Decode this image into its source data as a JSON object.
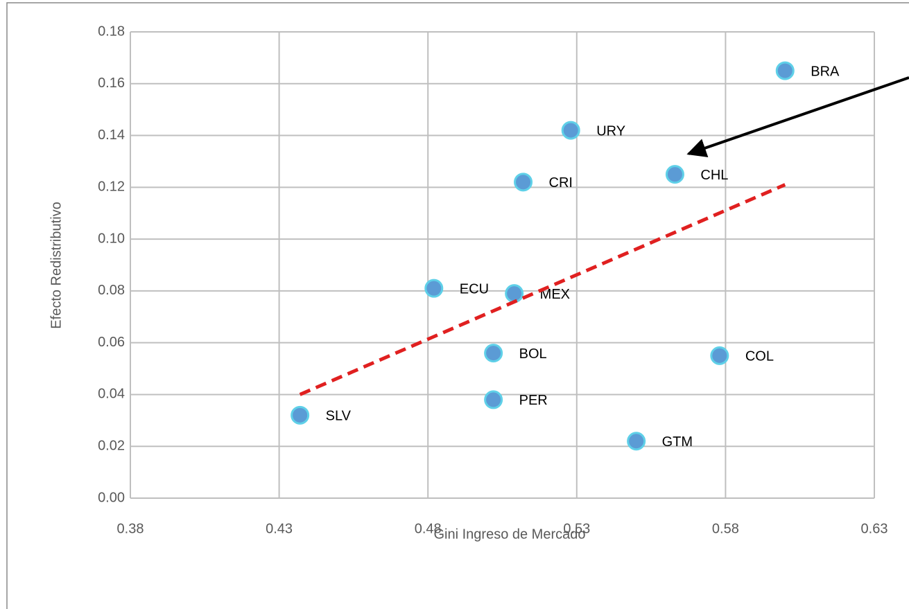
{
  "chart_data": {
    "type": "scatter",
    "xlabel": "Gini Ingreso de Mercado",
    "ylabel": "Efecto Redistributivo",
    "point_labels": [
      "BRA",
      "URY",
      "CHL",
      "CRI",
      "ECU",
      "MEX",
      "BOL",
      "COL",
      "PER",
      "SLV",
      "GTM"
    ],
    "x": [
      0.6,
      0.528,
      0.563,
      0.512,
      0.482,
      0.509,
      0.502,
      0.578,
      0.502,
      0.437,
      0.55
    ],
    "y": [
      0.165,
      0.142,
      0.125,
      0.122,
      0.081,
      0.079,
      0.056,
      0.055,
      0.038,
      0.032,
      0.022
    ],
    "color": "#5b9bd5",
    "trendline": {
      "x": [
        0.437,
        0.6
      ],
      "y": [
        0.04,
        0.121
      ],
      "color": "#e02020"
    },
    "xlim": [
      0.38,
      0.63
    ],
    "xticks": [
      0.38,
      0.43,
      0.48,
      0.53,
      0.58,
      0.63
    ],
    "ylim": [
      0,
      0.18
    ],
    "yticks": [
      {
        "value": 0,
        "label": "0.00"
      },
      0.02,
      0.04,
      0.06,
      0.08,
      {
        "value": 0.1,
        "label": "0.10"
      },
      0.12,
      0.14,
      0.16,
      0.18
    ],
    "grid": true
  }
}
